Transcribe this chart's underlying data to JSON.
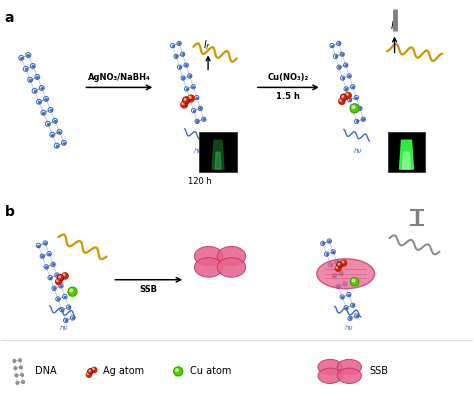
{
  "bg_color": "#ffffff",
  "label_agnabh4": "AgNO₃/NaBH₄",
  "label_cu": "Cu(NO₃)₂",
  "label_15h": "1.5 h",
  "label_120h": "120 h",
  "label_ssb": "SSB",
  "legend_dna": "DNA",
  "legend_ag": "Ag atom",
  "legend_cu": "Cu atom",
  "legend_ssb": "SSB",
  "dna_color": "#4169c0",
  "dna_red_color": "#cc3300",
  "yellow_dna_color": "#cc9900",
  "gray_dna_color": "#888888",
  "ag_color": "#cc2200",
  "cu_color": "#55cc00",
  "ssb_color": "#e8648c",
  "ssb_edge_color": "#c0306a"
}
